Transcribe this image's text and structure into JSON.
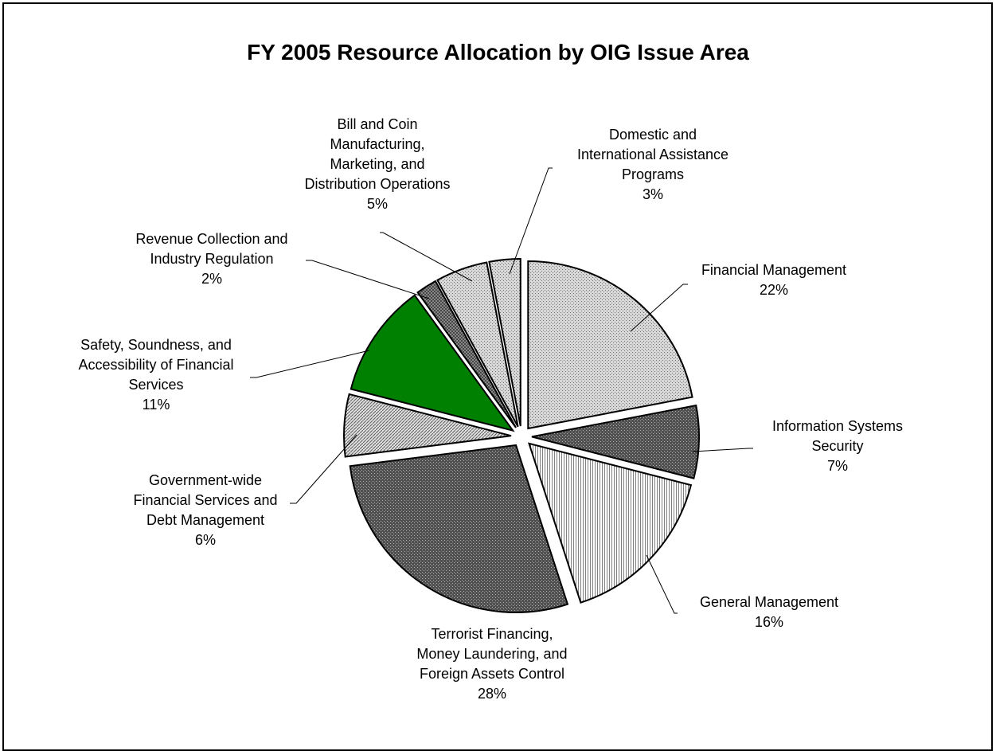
{
  "chart_data": {
    "type": "pie",
    "title": "FY 2005 Resource Allocation by OIG Issue Area",
    "slices": [
      {
        "label": "Financial Management",
        "value": 22,
        "pct_label": "22%",
        "pattern": "pat-light-dots"
      },
      {
        "label": "Information Systems Security",
        "value": 7,
        "pct_label": "7%",
        "pattern": "pat-dark-dots"
      },
      {
        "label": "General Management",
        "value": 16,
        "pct_label": "16%",
        "pattern": "pat-vlines"
      },
      {
        "label": "Terrorist Financing, Money Laundering, and Foreign Assets Control",
        "value": 28,
        "pct_label": "28%",
        "pattern": "pat-dark-dots"
      },
      {
        "label": "Government-wide Financial Services and Debt Management",
        "value": 6,
        "pct_label": "6%",
        "pattern": "pat-diag"
      },
      {
        "label": "Safety, Soundness, and Accessibility of Financial Services",
        "value": 11,
        "pct_label": "11%",
        "pattern": "solid-green"
      },
      {
        "label": "Revenue Collection and Industry Regulation",
        "value": 2,
        "pct_label": "2%",
        "pattern": "pat-cross"
      },
      {
        "label": "Bill and Coin Manufacturing, Marketing, and Distribution Operations",
        "value": 5,
        "pct_label": "5%",
        "pattern": "pat-light-dots"
      },
      {
        "label": "Domestic and International Assistance Programs",
        "value": 3,
        "pct_label": "3%",
        "pattern": "pat-light-dots"
      }
    ],
    "label_lines": [
      [
        "Financial Management",
        "22%"
      ],
      [
        "Information Systems",
        "Security",
        "7%"
      ],
      [
        "General Management",
        "16%"
      ],
      [
        "Terrorist Financing,",
        "Money Laundering, and",
        "Foreign Assets Control",
        "28%"
      ],
      [
        "Government-wide",
        "Financial Services and",
        "Debt Management",
        "6%"
      ],
      [
        "Safety, Soundness, and",
        "Accessibility of Financial",
        "Services",
        "11%"
      ],
      [
        "Revenue Collection and",
        "Industry Regulation",
        "2%"
      ],
      [
        "Bill and Coin",
        "Manufacturing,",
        "Marketing, and",
        "Distribution Operations",
        "5%"
      ],
      [
        "Domestic and",
        "International Assistance",
        "Programs",
        "3%"
      ]
    ],
    "colors": {
      "green": "#008000",
      "outline": "#000000"
    }
  }
}
